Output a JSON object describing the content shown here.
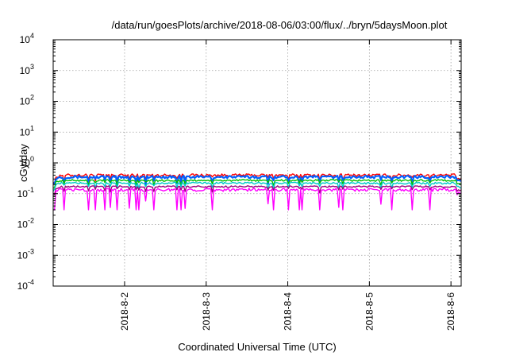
{
  "chart_data": {
    "type": "line",
    "title": "/data/run/goesPlots/archive/2018-08-06/03:00/flux/../bryn/5daysMoon.plot",
    "xlabel": "Coordinated Universal Time (UTC)",
    "ylabel": "cGy/day",
    "y_scale": "log",
    "ylim": [
      0.0001,
      10000
    ],
    "y_ticks": [
      {
        "exp": "-4"
      },
      {
        "exp": "-3"
      },
      {
        "exp": "-2"
      },
      {
        "exp": "-1"
      },
      {
        "exp": "0"
      },
      {
        "exp": "1"
      },
      {
        "exp": "2"
      },
      {
        "exp": "3"
      },
      {
        "exp": "4"
      }
    ],
    "y_tick_base": "10",
    "xlim": [
      "2018-08-01 03:00",
      "2018-08-06 03:00"
    ],
    "x_ticks": [
      "2018-8-2",
      "2018-8-3",
      "2018-8-4",
      "2018-8-5",
      "2018-8-6"
    ],
    "grid": true,
    "series": [
      {
        "color": "#ff0000",
        "base": 0.4,
        "noise": 0.1,
        "dips": 0.05
      },
      {
        "color": "#0060ff",
        "base": 0.35,
        "noise": 0.1,
        "dips": 0.06
      },
      {
        "color": "#00c000",
        "base": 0.27,
        "noise": 0.07,
        "dips": 0.04
      },
      {
        "color": "#00c8c8",
        "base": 0.22,
        "noise": 0.07,
        "dips": 0.05
      },
      {
        "color": "#a00080",
        "base": 0.17,
        "noise": 0.06,
        "dips": 0.05
      },
      {
        "color": "#ff00ff",
        "base": 0.135,
        "noise": 0.12,
        "dips": 0.2
      }
    ]
  }
}
